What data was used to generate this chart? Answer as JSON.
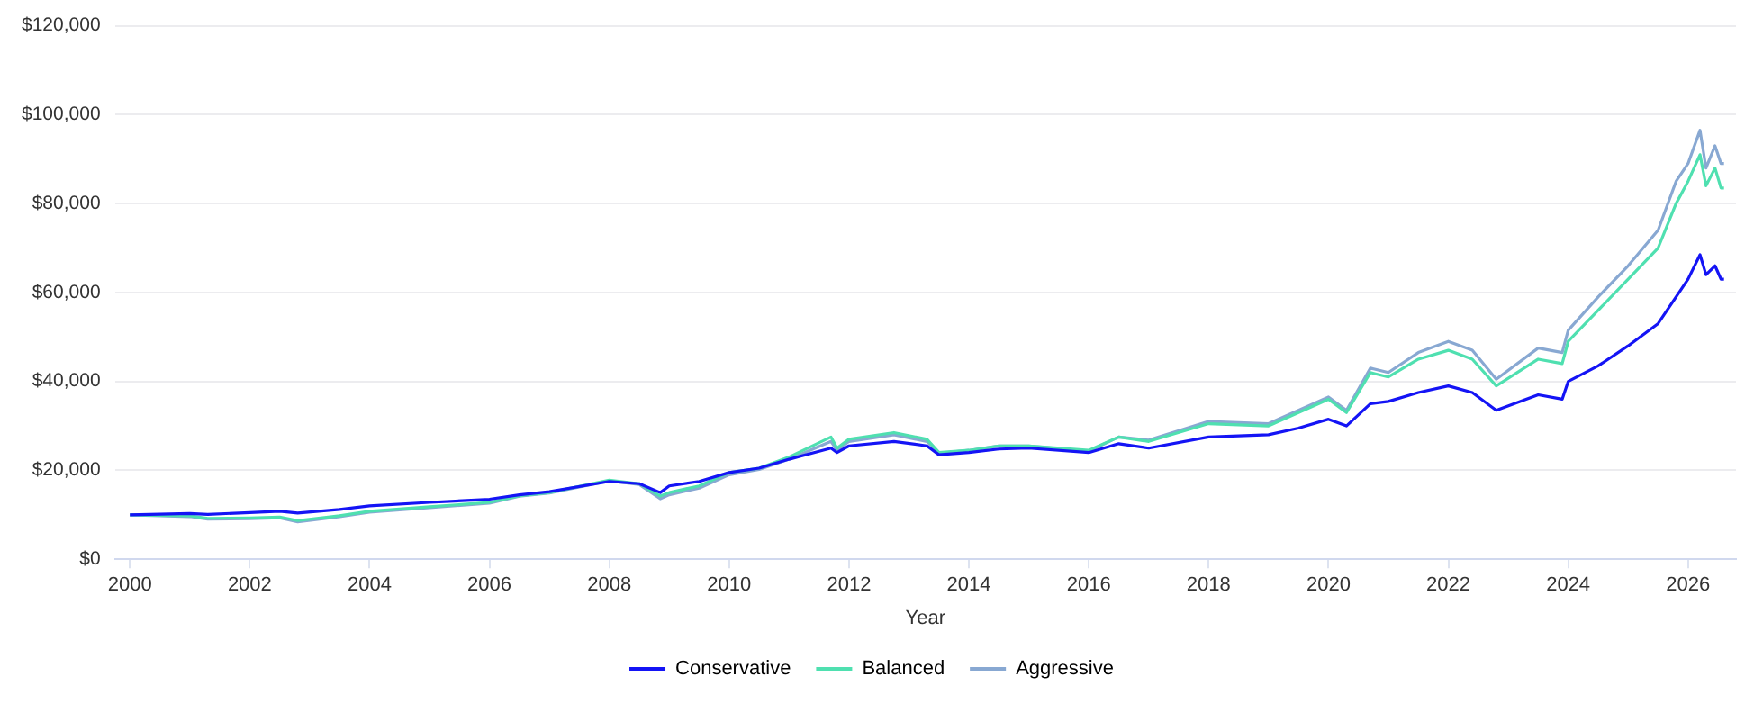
{
  "chart_data": {
    "type": "line",
    "xlabel": "Year",
    "xlim": [
      1999.75,
      2026.8
    ],
    "xticks": [
      2000,
      2002,
      2004,
      2006,
      2008,
      2010,
      2012,
      2014,
      2016,
      2018,
      2020,
      2022,
      2024,
      2026
    ],
    "ylim": [
      0,
      120000
    ],
    "yticks": [
      {
        "value": 0,
        "label": "$0"
      },
      {
        "value": 20000,
        "label": "$20,000"
      },
      {
        "value": 40000,
        "label": "$40,000"
      },
      {
        "value": 60000,
        "label": "$60,000"
      },
      {
        "value": 80000,
        "label": "$80,000"
      },
      {
        "value": 100000,
        "label": "$100,000"
      },
      {
        "value": 120000,
        "label": "$120,000"
      }
    ],
    "grid": "y",
    "legend": "bottom",
    "marker": "none",
    "line_style": "solid",
    "x": [
      2000,
      2001,
      2001.3,
      2002,
      2002.5,
      2002.8,
      2003.5,
      2004,
      2005,
      2006,
      2006.5,
      2007,
      2008,
      2008.5,
      2008.85,
      2009,
      2009.5,
      2010,
      2010.5,
      2011,
      2011.7,
      2011.8,
      2012,
      2012.75,
      2013.3,
      2013.5,
      2014,
      2014.5,
      2015,
      2016,
      2016.5,
      2017,
      2018,
      2019,
      2019.5,
      2020,
      2020.3,
      2020.7,
      2021,
      2021.5,
      2022,
      2022.4,
      2022.8,
      2023.5,
      2023.9,
      2024,
      2024.5,
      2025,
      2025.5,
      2025.8,
      2026,
      2026.2,
      2026.3,
      2026.45,
      2026.55,
      2026.6
    ],
    "series": [
      {
        "name": "Conservative",
        "color": "#1414f5",
        "values": [
          10000,
          10300,
          10100,
          10500,
          10800,
          10400,
          11200,
          12000,
          12800,
          13500,
          14500,
          15200,
          17500,
          17000,
          15000,
          16500,
          17500,
          19500,
          20500,
          22500,
          25000,
          24000,
          25500,
          26500,
          25500,
          23500,
          24000,
          24800,
          25000,
          24000,
          26000,
          25000,
          27500,
          28000,
          29500,
          31500,
          30000,
          35000,
          35500,
          37500,
          39000,
          37500,
          33500,
          37000,
          36000,
          40000,
          43500,
          48000,
          53000,
          59000,
          63000,
          68500,
          64000,
          66000,
          63000,
          63000
        ]
      },
      {
        "name": "Balanced",
        "color": "#4fe0b0",
        "values": [
          10000,
          9800,
          9200,
          9300,
          9500,
          8700,
          9800,
          10800,
          11800,
          12800,
          14300,
          15000,
          17800,
          17000,
          14200,
          15000,
          16500,
          19500,
          20500,
          23000,
          27500,
          25000,
          27000,
          28500,
          27000,
          24000,
          24500,
          25500,
          25500,
          24500,
          27500,
          26500,
          30500,
          30000,
          33000,
          36000,
          33000,
          42000,
          41000,
          45000,
          47000,
          45000,
          39000,
          45000,
          44000,
          49000,
          56000,
          63000,
          70000,
          80000,
          85000,
          91000,
          84000,
          88000,
          83500,
          83500
        ]
      },
      {
        "name": "Aggressive",
        "color": "#88a8d2",
        "values": [
          10000,
          9600,
          9000,
          9100,
          9300,
          8400,
          9600,
          10600,
          11600,
          12600,
          14200,
          14900,
          17600,
          16800,
          13600,
          14500,
          16000,
          19000,
          20200,
          22500,
          26500,
          24500,
          26500,
          28000,
          26500,
          23800,
          24500,
          25500,
          25500,
          24300,
          27500,
          26800,
          31000,
          30500,
          33500,
          36500,
          33500,
          43000,
          42000,
          46500,
          49000,
          47000,
          40500,
          47500,
          46500,
          51500,
          59000,
          66000,
          74000,
          85000,
          89000,
          96500,
          88000,
          93000,
          89000,
          89000
        ]
      }
    ]
  }
}
